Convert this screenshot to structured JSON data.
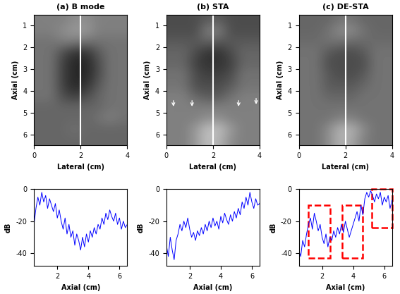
{
  "chart_data": [
    {
      "type": "image",
      "title": "(a) B mode",
      "xlabel": "Lateral (cm)",
      "ylabel": "Axial (cm)",
      "xlim": [
        0,
        4
      ],
      "ylim": [
        6.5,
        0.5
      ],
      "xticks": [
        0,
        2,
        4
      ],
      "yticks": [
        1,
        2,
        3,
        4,
        5,
        6
      ],
      "clim": [
        0,
        1
      ],
      "line_x": 2,
      "color": "#ffffff",
      "cells": [
        [
          0.5,
          0.5,
          0.5,
          0.55,
          0.55,
          0.5,
          0.5,
          0.5
        ],
        [
          0.5,
          0.5,
          0.55,
          0.6,
          0.6,
          0.5,
          0.5,
          0.5
        ],
        [
          0.45,
          0.45,
          0.5,
          0.5,
          0.45,
          0.45,
          0.45,
          0.45
        ],
        [
          0.45,
          0.45,
          0.3,
          0.2,
          0.2,
          0.35,
          0.45,
          0.45
        ],
        [
          0.45,
          0.45,
          0.25,
          0.15,
          0.15,
          0.3,
          0.45,
          0.45
        ],
        [
          0.45,
          0.45,
          0.25,
          0.15,
          0.15,
          0.3,
          0.45,
          0.45
        ],
        [
          0.45,
          0.45,
          0.25,
          0.15,
          0.2,
          0.35,
          0.45,
          0.45
        ],
        [
          0.45,
          0.45,
          0.3,
          0.25,
          0.3,
          0.4,
          0.45,
          0.45
        ],
        [
          0.4,
          0.4,
          0.4,
          0.4,
          0.4,
          0.4,
          0.45,
          0.45
        ],
        [
          0.4,
          0.4,
          0.4,
          0.4,
          0.4,
          0.45,
          0.5,
          0.45
        ],
        [
          0.4,
          0.4,
          0.4,
          0.45,
          0.4,
          0.4,
          0.4,
          0.4
        ],
        [
          0.4,
          0.4,
          0.4,
          0.4,
          0.4,
          0.4,
          0.4,
          0.4
        ]
      ]
    },
    {
      "type": "image",
      "title": "(b) STA",
      "xlabel": "Lateral (cm)",
      "ylabel": "Axial (cm)",
      "xlim": [
        0,
        4
      ],
      "ylim": [
        6.5,
        0.5
      ],
      "xticks": [
        0,
        2,
        4
      ],
      "yticks": [
        1,
        2,
        3,
        4,
        5,
        6
      ],
      "clim": [
        0,
        1
      ],
      "line_x": 2,
      "color": "#ffffff",
      "arrows": [
        [
          0.3,
          4.8
        ],
        [
          1.1,
          4.8
        ],
        [
          3.1,
          4.8
        ],
        [
          3.85,
          4.7
        ]
      ],
      "cells": [
        [
          0.3,
          0.3,
          0.3,
          0.35,
          0.35,
          0.3,
          0.3,
          0.3
        ],
        [
          0.3,
          0.3,
          0.3,
          0.5,
          0.5,
          0.3,
          0.3,
          0.3
        ],
        [
          0.35,
          0.35,
          0.35,
          0.4,
          0.35,
          0.35,
          0.35,
          0.35
        ],
        [
          0.4,
          0.4,
          0.3,
          0.2,
          0.2,
          0.3,
          0.4,
          0.4
        ],
        [
          0.4,
          0.4,
          0.25,
          0.2,
          0.2,
          0.25,
          0.4,
          0.4
        ],
        [
          0.45,
          0.45,
          0.3,
          0.25,
          0.25,
          0.3,
          0.45,
          0.45
        ],
        [
          0.45,
          0.45,
          0.3,
          0.3,
          0.3,
          0.35,
          0.45,
          0.45
        ],
        [
          0.5,
          0.5,
          0.4,
          0.35,
          0.35,
          0.45,
          0.5,
          0.5
        ],
        [
          0.5,
          0.5,
          0.5,
          0.5,
          0.5,
          0.5,
          0.5,
          0.5
        ],
        [
          0.5,
          0.5,
          0.5,
          0.55,
          0.55,
          0.5,
          0.5,
          0.5
        ],
        [
          0.5,
          0.5,
          0.6,
          0.75,
          0.75,
          0.6,
          0.5,
          0.5
        ],
        [
          0.5,
          0.5,
          0.6,
          0.75,
          0.7,
          0.55,
          0.5,
          0.5
        ]
      ]
    },
    {
      "type": "image",
      "title": "(c) DE-STA",
      "xlabel": "Lateral (cm)",
      "ylabel": "Axial (cm)",
      "xlim": [
        0,
        4
      ],
      "ylim": [
        6.5,
        0.5
      ],
      "xticks": [
        0,
        2,
        4
      ],
      "yticks": [
        1,
        2,
        3,
        4,
        5,
        6
      ],
      "clim": [
        0,
        1
      ],
      "line_x": 2,
      "color": "#ffffff",
      "cells": [
        [
          0.4,
          0.4,
          0.4,
          0.45,
          0.45,
          0.4,
          0.4,
          0.4
        ],
        [
          0.4,
          0.4,
          0.45,
          0.55,
          0.55,
          0.45,
          0.4,
          0.4
        ],
        [
          0.42,
          0.42,
          0.45,
          0.45,
          0.42,
          0.42,
          0.42,
          0.42
        ],
        [
          0.45,
          0.45,
          0.35,
          0.3,
          0.3,
          0.35,
          0.45,
          0.45
        ],
        [
          0.45,
          0.45,
          0.3,
          0.3,
          0.3,
          0.3,
          0.45,
          0.45
        ],
        [
          0.45,
          0.45,
          0.35,
          0.3,
          0.3,
          0.35,
          0.45,
          0.45
        ],
        [
          0.45,
          0.45,
          0.35,
          0.35,
          0.35,
          0.4,
          0.45,
          0.45
        ],
        [
          0.45,
          0.45,
          0.4,
          0.4,
          0.4,
          0.45,
          0.45,
          0.45
        ],
        [
          0.45,
          0.45,
          0.45,
          0.45,
          0.45,
          0.45,
          0.45,
          0.45
        ],
        [
          0.45,
          0.45,
          0.45,
          0.5,
          0.5,
          0.45,
          0.45,
          0.45
        ],
        [
          0.45,
          0.45,
          0.55,
          0.7,
          0.7,
          0.55,
          0.45,
          0.45
        ],
        [
          0.45,
          0.45,
          0.55,
          0.7,
          0.65,
          0.5,
          0.45,
          0.45
        ]
      ]
    },
    {
      "type": "line",
      "xlabel": "Axial (cm)",
      "ylabel": "dB",
      "color": "#0000ff",
      "xlim": [
        0.5,
        6.5
      ],
      "ylim": [
        -48,
        0
      ],
      "xticks": [
        2,
        4,
        6
      ],
      "yticks": [
        -40,
        -20,
        0
      ],
      "x": [
        0.5,
        0.625,
        0.75,
        0.875,
        1.0,
        1.125,
        1.25,
        1.375,
        1.5,
        1.625,
        1.75,
        1.875,
        2.0,
        2.125,
        2.25,
        2.375,
        2.5,
        2.625,
        2.75,
        2.875,
        3.0,
        3.125,
        3.25,
        3.375,
        3.5,
        3.625,
        3.75,
        3.875,
        4.0,
        4.125,
        4.25,
        4.375,
        4.5,
        4.625,
        4.75,
        4.875,
        5.0,
        5.125,
        5.25,
        5.375,
        5.5,
        5.625,
        5.75,
        5.875,
        6.0,
        6.125,
        6.25,
        6.375,
        6.5
      ],
      "values": [
        -22,
        -12,
        -5,
        -10,
        -2,
        -8,
        -4,
        -12,
        -6,
        -10,
        -14,
        -9,
        -18,
        -13,
        -20,
        -25,
        -18,
        -28,
        -22,
        -30,
        -26,
        -35,
        -28,
        -32,
        -38,
        -30,
        -36,
        -28,
        -33,
        -26,
        -30,
        -24,
        -28,
        -22,
        -25,
        -18,
        -22,
        -15,
        -19,
        -13,
        -17,
        -20,
        -15,
        -22,
        -18,
        -25,
        -20,
        -24,
        -22
      ]
    },
    {
      "type": "line",
      "xlabel": "Axial (cm)",
      "ylabel": "dB",
      "color": "#0000ff",
      "xlim": [
        0.5,
        6.5
      ],
      "ylim": [
        -48,
        0
      ],
      "xticks": [
        2,
        4,
        6
      ],
      "yticks": [
        -40,
        -20,
        0
      ],
      "x": [
        0.5,
        0.625,
        0.75,
        0.875,
        1.0,
        1.125,
        1.25,
        1.375,
        1.5,
        1.625,
        1.75,
        1.875,
        2.0,
        2.125,
        2.25,
        2.375,
        2.5,
        2.625,
        2.75,
        2.875,
        3.0,
        3.125,
        3.25,
        3.375,
        3.5,
        3.625,
        3.75,
        3.875,
        4.0,
        4.125,
        4.25,
        4.375,
        4.5,
        4.625,
        4.75,
        4.875,
        5.0,
        5.125,
        5.25,
        5.375,
        5.5,
        5.625,
        5.75,
        5.875,
        6.0,
        6.125,
        6.25,
        6.375,
        6.5
      ],
      "values": [
        -35,
        -42,
        -30,
        -38,
        -44,
        -32,
        -28,
        -22,
        -26,
        -20,
        -24,
        -18,
        -25,
        -30,
        -27,
        -32,
        -26,
        -29,
        -24,
        -28,
        -22,
        -26,
        -20,
        -24,
        -18,
        -23,
        -20,
        -25,
        -17,
        -21,
        -15,
        -19,
        -22,
        -16,
        -20,
        -14,
        -18,
        -12,
        -16,
        -8,
        -12,
        -5,
        -10,
        -2,
        -8,
        -12,
        -6,
        -10,
        -9
      ]
    },
    {
      "type": "line",
      "xlabel": "Axial (cm)",
      "ylabel": "dB",
      "color": "#0000ff",
      "xlim": [
        0.5,
        6.5
      ],
      "ylim": [
        -48,
        0
      ],
      "xticks": [
        2,
        4,
        6
      ],
      "yticks": [
        -40,
        -20,
        0
      ],
      "x": [
        0.5,
        0.625,
        0.75,
        0.875,
        1.0,
        1.125,
        1.25,
        1.375,
        1.5,
        1.625,
        1.75,
        1.875,
        2.0,
        2.125,
        2.25,
        2.375,
        2.5,
        2.625,
        2.75,
        2.875,
        3.0,
        3.125,
        3.25,
        3.375,
        3.5,
        3.625,
        3.75,
        3.875,
        4.0,
        4.125,
        4.25,
        4.375,
        4.5,
        4.625,
        4.75,
        4.875,
        5.0,
        5.125,
        5.25,
        5.375,
        5.5,
        5.625,
        5.75,
        5.875,
        6.0,
        6.125,
        6.25,
        6.375,
        6.5
      ],
      "values": [
        -38,
        -42,
        -32,
        -36,
        -28,
        -22,
        -18,
        -25,
        -15,
        -20,
        -26,
        -22,
        -30,
        -34,
        -28,
        -36,
        -30,
        -32,
        -26,
        -30,
        -24,
        -28,
        -22,
        -27,
        -20,
        -25,
        -30,
        -26,
        -22,
        -18,
        -14,
        -20,
        -10,
        -16,
        -6,
        -2,
        -5,
        -1,
        -4,
        -8,
        -3,
        -6,
        -2,
        -10,
        -5,
        -8,
        -4,
        -12,
        -7
      ],
      "boxes": [
        {
          "x": [
            1.1,
            2.5
          ],
          "y": [
            -43,
            -10
          ],
          "color": "#ff0000",
          "line_style": "dashed"
        },
        {
          "x": [
            3.3,
            4.6
          ],
          "y": [
            -43,
            -10
          ],
          "color": "#ff0000",
          "line_style": "dashed"
        },
        {
          "x": [
            5.2,
            6.5
          ],
          "y": [
            -24,
            0
          ],
          "color": "#ff0000",
          "line_style": "dashed"
        }
      ]
    }
  ]
}
